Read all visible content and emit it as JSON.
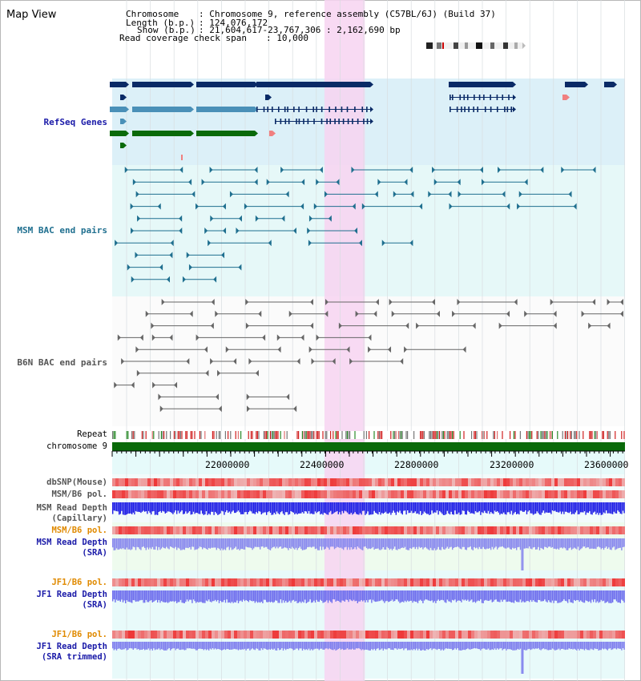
{
  "app": {
    "title": "Map View"
  },
  "header": {
    "chromosome_key": "Chromosome",
    "chromosome_val": ": Chromosome 9, reference assembly (C57BL/6J) (Build 37)",
    "length_key": "Length (b.p.)",
    "length_val": ": 124,076,172",
    "show_key": "Show (b.p.)",
    "show_val": ": 21,604,617-23,767,306 : 2,162,690 bp",
    "coverage_key": "Read coverage check span",
    "coverage_val": ": 10,000"
  },
  "tracks": {
    "refseq": "RefSeq Genes",
    "msm_bac": "MSM BAC end pairs",
    "b6n_bac": "B6N BAC end pairs",
    "repeat": "Repeat",
    "chromosome": "chromosome 9",
    "dbsnp": "dbSNP(Mouse)",
    "msm_b6_pol_1": "MSM/B6 pol.",
    "msm_depth_cap_1": "MSM Read Depth",
    "msm_depth_cap_2": "(Capillary)",
    "msm_b6_pol_2": "MSM/B6 pol.",
    "msm_depth_sra_1": "MSM Read Depth",
    "msm_depth_sra_2": "(SRA)",
    "jf1_b6_pol_1": "JF1/B6 pol.",
    "jf1_depth_sra_1": "JF1 Read Depth",
    "jf1_depth_sra_2": "(SRA)",
    "jf1_b6_pol_2": "JF1/B6 pol.",
    "jf1_depth_trim_1": "JF1 Read Depth",
    "jf1_depth_trim_2": "(SRA trimmed)"
  },
  "ruler": {
    "ticks": [
      "22000000",
      "22400000",
      "22800000",
      "23200000",
      "23600000"
    ]
  },
  "view": {
    "start_bp": 21604617,
    "end_bp": 23767306,
    "highlight_start_bp": 22500000,
    "highlight_end_bp": 22670000
  },
  "colors": {
    "refseq_dark": "#0a2a66",
    "refseq_mid": "#4a90b8",
    "refseq_green": "#0a6a0a",
    "msm_pair": "#1f6f8f",
    "b6n_pair": "#666666",
    "chromosome_bar": "#0a6a0a",
    "highlight": "#f7d3f1",
    "msm_label": "#1f6f8f",
    "b6n_label": "#555555",
    "refseq_label": "#1a1aa8",
    "pol_orange": "#e08a00",
    "depth_blue": "#1a1acc"
  }
}
